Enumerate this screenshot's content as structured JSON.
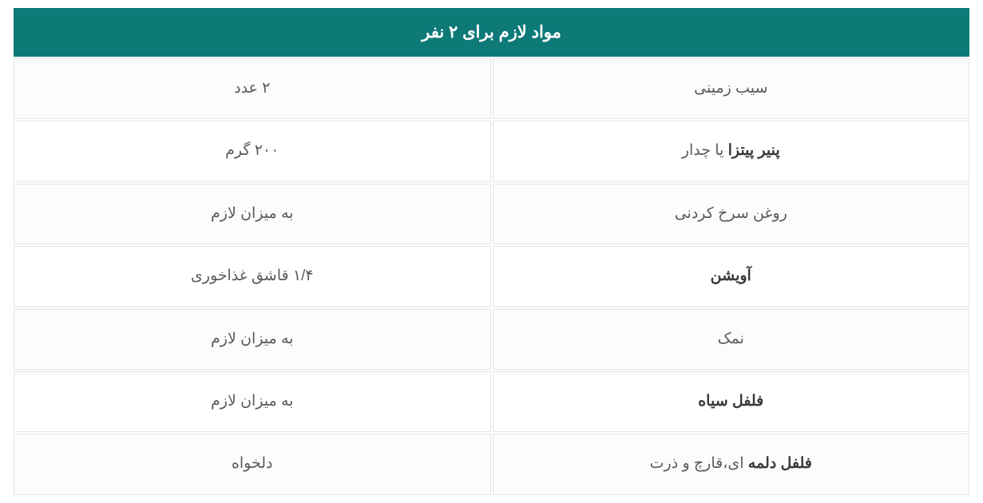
{
  "table": {
    "header": "مواد لازم برای ۲ نفر",
    "colors": {
      "header_bg": "#0d7a78",
      "header_fg": "#ffffff",
      "row_odd_bg": "#fbfcfc",
      "row_even_bg": "#ffffff",
      "border": "#e3e6e8",
      "text": "#5a5a5a",
      "text_bold": "#3a3a3a"
    },
    "columns": [
      "ingredient",
      "amount"
    ],
    "rows": [
      {
        "ingredient": [
          {
            "text": "سیب زمینی",
            "bold": false
          }
        ],
        "amount": [
          {
            "text": "۲ عدد",
            "bold": false
          }
        ]
      },
      {
        "ingredient": [
          {
            "text": "پنیر پیتزا",
            "bold": true
          },
          {
            "text": " یا چدار",
            "bold": false
          }
        ],
        "amount": [
          {
            "text": "۲۰۰ گرم",
            "bold": false
          }
        ]
      },
      {
        "ingredient": [
          {
            "text": "روغن سرخ کردنی",
            "bold": false
          }
        ],
        "amount": [
          {
            "text": "به میزان لازم",
            "bold": false
          }
        ]
      },
      {
        "ingredient": [
          {
            "text": "آویشن",
            "bold": true
          }
        ],
        "amount": [
          {
            "text": "۱/۴ قاشق غذاخوری",
            "bold": false
          }
        ]
      },
      {
        "ingredient": [
          {
            "text": "نمک",
            "bold": false
          }
        ],
        "amount": [
          {
            "text": "به میزان لازم",
            "bold": false
          }
        ]
      },
      {
        "ingredient": [
          {
            "text": "فلفل سیاه",
            "bold": true
          }
        ],
        "amount": [
          {
            "text": "به میزان لازم",
            "bold": false
          }
        ]
      },
      {
        "ingredient": [
          {
            "text": "فلفل دلمه",
            "bold": true
          },
          {
            "text": " ای،قارچ و ذرت",
            "bold": false
          }
        ],
        "amount": [
          {
            "text": "دلخواه",
            "bold": false
          }
        ]
      }
    ]
  }
}
